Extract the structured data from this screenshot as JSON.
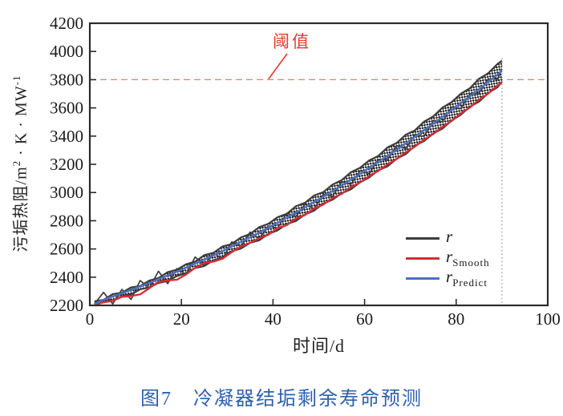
{
  "figure": {
    "caption_number": "图7",
    "caption_title": "冷凝器结垢剩余寿命预测",
    "caption_color": "#2e5fae"
  },
  "chart_data": {
    "type": "line",
    "title": "",
    "xlabel": "时间/d",
    "ylabel": {
      "prefix": "污垢热阻/m",
      "sup1": "2",
      "mid": " · K · MW",
      "sup2": "-1"
    },
    "xlim": [
      0,
      100
    ],
    "ylim": [
      2200,
      4200
    ],
    "xticks": [
      0,
      20,
      40,
      60,
      80,
      100
    ],
    "yticks": [
      2200,
      2400,
      2600,
      2800,
      3000,
      3200,
      3400,
      3600,
      3800,
      4000,
      4200
    ],
    "grid": false,
    "legend_position": "right-middle",
    "threshold": {
      "value": 3800,
      "label": "阈值",
      "color": "#e8392f",
      "dash_color": "#ef7a6d"
    },
    "prediction_end_day": 90,
    "x": [
      1,
      3,
      5,
      7,
      9,
      11,
      13,
      15,
      17,
      19,
      21,
      23,
      25,
      27,
      29,
      31,
      33,
      35,
      37,
      39,
      41,
      43,
      45,
      47,
      49,
      51,
      53,
      55,
      57,
      59,
      61,
      63,
      65,
      67,
      69,
      71,
      73,
      75,
      77,
      79,
      81,
      83,
      85,
      87,
      89,
      90
    ],
    "series": [
      {
        "name": "r",
        "legend_main": "r",
        "legend_sub": "",
        "color": "#3c3c3c",
        "style": "noisy-band",
        "band_top": [
          2229,
          2239,
          2280,
          2290,
          2328,
          2337,
          2376,
          2394,
          2436,
          2453,
          2491,
          2510,
          2556,
          2573,
          2618,
          2635,
          2682,
          2706,
          2755,
          2779,
          2825,
          2849,
          2903,
          2928,
          2979,
          3003,
          3056,
          3088,
          3144,
          3175,
          3227,
          3259,
          3320,
          3351,
          3410,
          3441,
          3502,
          3540,
          3602,
          3641,
          3700,
          3739,
          3807,
          3846,
          3911,
          3935
        ],
        "band_bottom": [
          2200,
          2224,
          2231,
          2265,
          2277,
          2314,
          2327,
          2359,
          2373,
          2408,
          2428,
          2465,
          2479,
          2520,
          2539,
          2584,
          2603,
          2643,
          2662,
          2706,
          2732,
          2776,
          2798,
          2845,
          2872,
          2922,
          2949,
          2995,
          3023,
          3072,
          3106,
          3158,
          3185,
          3240,
          3273,
          3332,
          3365,
          3419,
          3453,
          3510,
          3551,
          3608,
          3644,
          3705,
          3746,
          3785
        ],
        "values": [
          2211,
          2292,
          2210,
          2313,
          2242,
          2376,
          2321,
          2442,
          2354,
          2461,
          2419,
          2543,
          2482,
          2572,
          2528,
          2650,
          2617,
          2720,
          2673,
          2763,
          2748,
          2853,
          2830,
          2917,
          2885,
          2988,
          2972,
          3077,
          3058,
          3154,
          3131,
          3234,
          3232,
          3331,
          3311,
          3412,
          3398,
          3510,
          3502,
          3606,
          3595,
          3699,
          3705,
          3806,
          3803,
          3874
        ]
      },
      {
        "name": "r_Smooth",
        "legend_main": "r",
        "legend_sub": "Smooth",
        "color": "#dc2a34",
        "style": "smooth",
        "values": [
          2206,
          2221,
          2232,
          2261,
          2266,
          2278,
          2322,
          2366,
          2377,
          2382,
          2419,
          2466,
          2502,
          2510,
          2531,
          2577,
          2617,
          2644,
          2675,
          2701,
          2748,
          2769,
          2816,
          2841,
          2887,
          2915,
          2961,
          2991,
          3038,
          3071,
          3117,
          3153,
          3200,
          3237,
          3286,
          3325,
          3375,
          3415,
          3466,
          3507,
          3561,
          3602,
          3658,
          3701,
          3758,
          3780
        ]
      },
      {
        "name": "r_Predict",
        "legend_main": "r",
        "legend_sub": "Predict",
        "color": "#4e6fbe",
        "style": "smooth",
        "values": [
          2210,
          2240,
          2263,
          2286,
          2310,
          2334,
          2359,
          2385,
          2412,
          2439,
          2467,
          2496,
          2525,
          2555,
          2586,
          2618,
          2650,
          2683,
          2716,
          2751,
          2786,
          2821,
          2858,
          2895,
          2933,
          2971,
          3010,
          3050,
          3091,
          3132,
          3174,
          3217,
          3260,
          3304,
          3349,
          3395,
          3441,
          3488,
          3535,
          3584,
          3633,
          3682,
          3733,
          3784,
          3836,
          3862
        ]
      }
    ]
  }
}
